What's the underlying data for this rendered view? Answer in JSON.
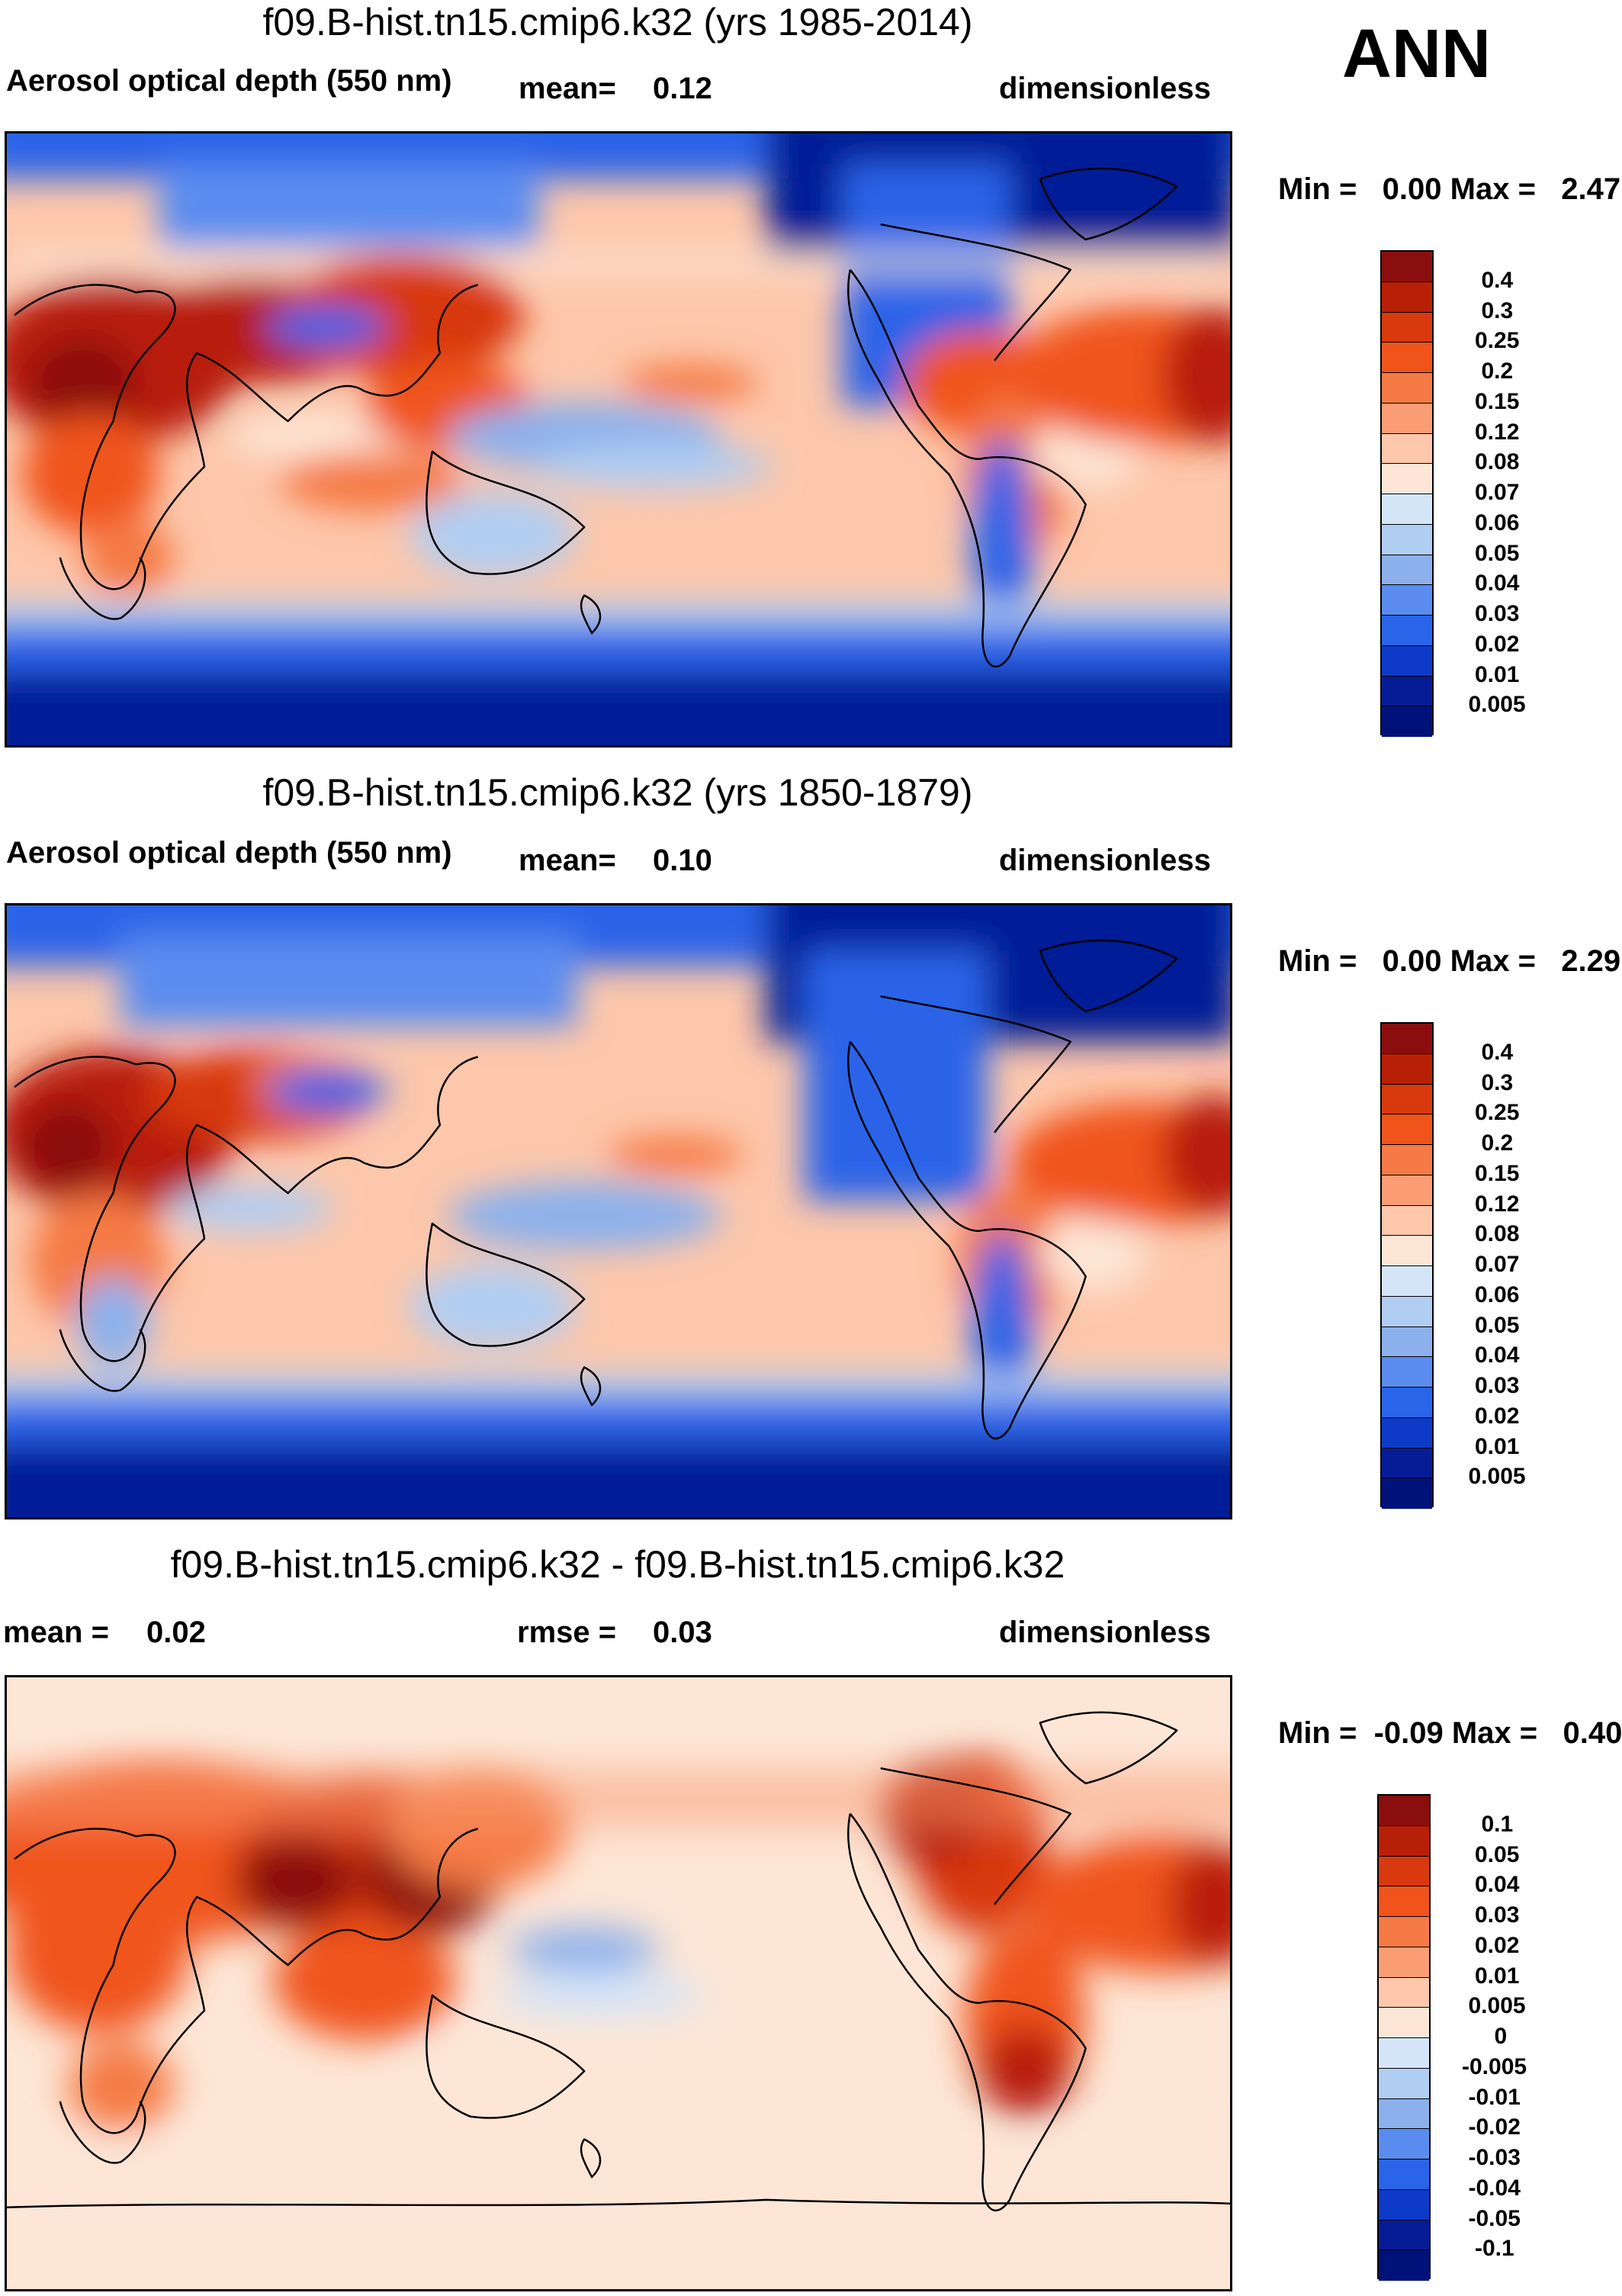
{
  "season_label": "ANN",
  "panels": [
    {
      "title": "f09.B-hist.tn15.cmip6.k32 (yrs 1985-2014)",
      "variable": "Aerosol optical depth (550 nm)",
      "stat_label": "mean=",
      "stat_value": "0.12",
      "units": "dimensionless",
      "min_max": "Min =   0.00 Max =   2.47"
    },
    {
      "title": "f09.B-hist.tn15.cmip6.k32 (yrs 1850-1879)",
      "variable": "Aerosol optical depth (550 nm)",
      "stat_label": "mean=",
      "stat_value": "0.10",
      "units": "dimensionless",
      "min_max": "Min =   0.00 Max =   2.29"
    },
    {
      "title": "f09.B-hist.tn15.cmip6.k32 - f09.B-hist.tn15.cmip6.k32",
      "mean_label": "mean =",
      "mean_value": "0.02",
      "rmse_label": "rmse =",
      "rmse_value": "0.03",
      "units": "dimensionless",
      "min_max": "Min =  -0.09 Max =   0.40"
    }
  ],
  "colorbars": {
    "aod_levels": [
      "0.4",
      "0.3",
      "0.25",
      "0.2",
      "0.15",
      "0.12",
      "0.08",
      "0.07",
      "0.06",
      "0.05",
      "0.04",
      "0.03",
      "0.02",
      "0.01",
      "0.005"
    ],
    "aod_colors": [
      "#8b0e0e",
      "#b81f07",
      "#d8390d",
      "#f0541a",
      "#f57a45",
      "#fa9d75",
      "#fdc7ab",
      "#fde6d6",
      "#d5e5f8",
      "#b0cdf2",
      "#8bb0ec",
      "#5a8cf0",
      "#2a64e8",
      "#0d3bc8",
      "#061c96",
      "#00117a"
    ],
    "diff_levels": [
      "0.1",
      "0.05",
      "0.04",
      "0.03",
      "0.02",
      "0.01",
      "0.005",
      "0",
      "-0.005",
      "-0.01",
      "-0.02",
      "-0.03",
      "-0.04",
      "-0.05",
      "-0.1"
    ],
    "diff_colors": [
      "#8b0e0e",
      "#b81f07",
      "#d8390d",
      "#f0541a",
      "#f57a45",
      "#fa9d75",
      "#fdc7ab",
      "#fde6d6",
      "#d5e5f8",
      "#b0cdf2",
      "#8bb0ec",
      "#5a8cf0",
      "#2a64e8",
      "#0d3bc8",
      "#061c96",
      "#00117a"
    ]
  },
  "chart_data": [
    {
      "type": "heatmap",
      "title": "f09.B-hist.tn15.cmip6.k32 (yrs 1985-2014)",
      "variable": "Aerosol optical depth (550 nm)",
      "mean": 0.12,
      "units": "dimensionless",
      "min": 0.0,
      "max": 2.47,
      "contour_levels": [
        0.005,
        0.01,
        0.02,
        0.03,
        0.04,
        0.05,
        0.06,
        0.07,
        0.08,
        0.12,
        0.15,
        0.2,
        0.25,
        0.3,
        0.4
      ],
      "x": "longitude (0 to 360)",
      "y": "latitude (-90 to 90)"
    },
    {
      "type": "heatmap",
      "title": "f09.B-hist.tn15.cmip6.k32 (yrs 1850-1879)",
      "variable": "Aerosol optical depth (550 nm)",
      "mean": 0.1,
      "units": "dimensionless",
      "min": 0.0,
      "max": 2.29,
      "contour_levels": [
        0.005,
        0.01,
        0.02,
        0.03,
        0.04,
        0.05,
        0.06,
        0.07,
        0.08,
        0.12,
        0.15,
        0.2,
        0.25,
        0.3,
        0.4
      ],
      "x": "longitude (0 to 360)",
      "y": "latitude (-90 to 90)"
    },
    {
      "type": "heatmap",
      "title": "f09.B-hist.tn15.cmip6.k32 - f09.B-hist.tn15.cmip6.k32",
      "mean": 0.02,
      "rmse": 0.03,
      "units": "dimensionless",
      "min": -0.09,
      "max": 0.4,
      "contour_levels": [
        -0.1,
        -0.05,
        -0.04,
        -0.03,
        -0.02,
        -0.01,
        -0.005,
        0,
        0.005,
        0.01,
        0.02,
        0.03,
        0.04,
        0.05,
        0.1
      ],
      "x": "longitude (0 to 360)",
      "y": "latitude (-90 to 90)"
    }
  ]
}
